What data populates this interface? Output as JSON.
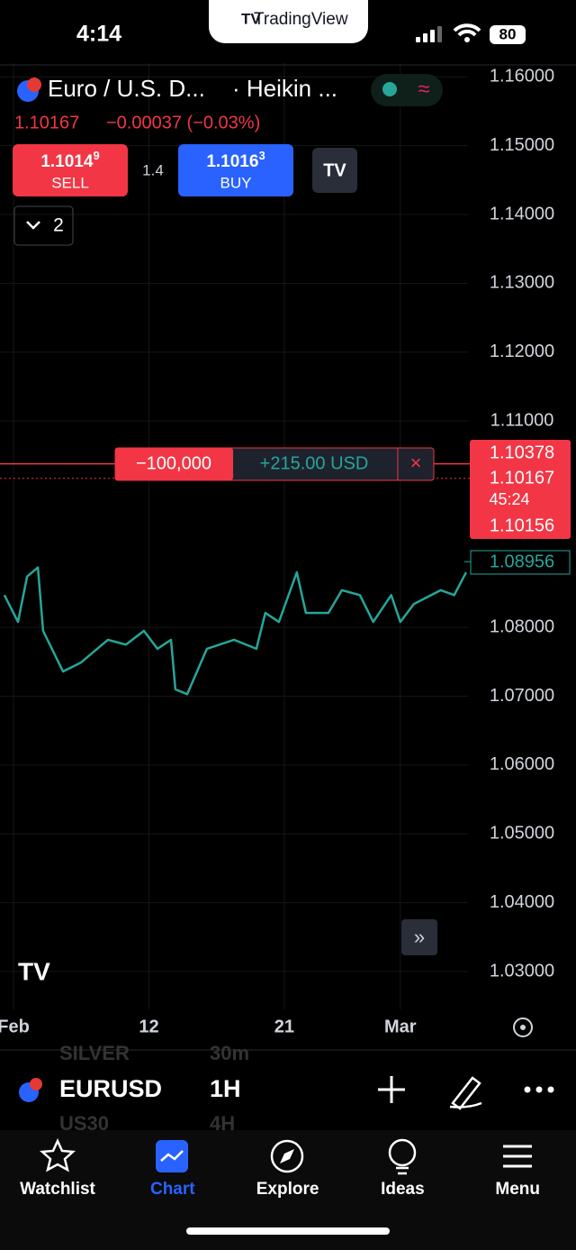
{
  "status_bar": {
    "time": "4:14",
    "app": "TradingView",
    "battery": "80"
  },
  "header": {
    "symbol": "Euro / U.S. D...",
    "chart_style": "· Heikin ...",
    "price": "1.10167",
    "change": "−0.00037 (−0.03%)"
  },
  "trade": {
    "sell_price": "1.1014",
    "sell_pip": "9",
    "sell_label": "SELL",
    "spread": "1.4",
    "buy_price": "1.1016",
    "buy_pip": "3",
    "buy_label": "BUY",
    "collapsed_count": "2"
  },
  "position": {
    "quantity": "−100,000",
    "pnl": "+215.00 USD",
    "close": "×"
  },
  "price_scale": {
    "entry": {
      "value": 1.10378,
      "label": "1.10378"
    },
    "last": {
      "value": 1.10167,
      "label": "1.10167"
    },
    "countdown": "45:24",
    "bid": {
      "value": 1.10156,
      "label": "1.10156"
    },
    "current": {
      "value": 1.08956,
      "label": "1.08956"
    }
  },
  "chart_data": {
    "type": "line",
    "x": [
      -0.47,
      0.23,
      0.7,
      1.26,
      1.53,
      2.56,
      3.49,
      4.88,
      5.81,
      6.74,
      7.44,
      8.14,
      8.37,
      8.98,
      10.0,
      11.4,
      12.56,
      13.02,
      13.72,
      14.65,
      15.12,
      16.28,
      16.98,
      17.91,
      18.6,
      19.53,
      20.0,
      20.7,
      22.09,
      22.79,
      23.4
    ],
    "values": [
      1.0847,
      1.0808,
      1.0874,
      1.0887,
      1.0795,
      1.0736,
      1.0749,
      1.0782,
      1.0775,
      1.0795,
      1.0769,
      1.0782,
      1.071,
      1.0703,
      1.0769,
      1.0782,
      1.0769,
      1.0821,
      1.0808,
      1.088,
      1.0821,
      1.0821,
      1.0854,
      1.0847,
      1.0808,
      1.0847,
      1.0808,
      1.0834,
      1.0854,
      1.0847,
      1.088
    ],
    "color": "#26a69a",
    "xlim": [
      -0.7,
      23.5
    ],
    "xticks": [
      {
        "value": 0,
        "label": "Feb"
      },
      {
        "value": 7,
        "label": "12"
      },
      {
        "value": 14,
        "label": "21"
      },
      {
        "value": 20,
        "label": "Mar"
      }
    ],
    "ylim": [
      1.0245,
      1.162
    ],
    "yticks": [
      {
        "value": 1.16,
        "label": "1.16000"
      },
      {
        "value": 1.15,
        "label": "1.15000"
      },
      {
        "value": 1.14,
        "label": "1.14000"
      },
      {
        "value": 1.13,
        "label": "1.13000"
      },
      {
        "value": 1.12,
        "label": "1.12000"
      },
      {
        "value": 1.11,
        "label": "1.11000"
      },
      {
        "value": 1.08,
        "label": "1.08000"
      },
      {
        "value": 1.07,
        "label": "1.07000"
      },
      {
        "value": 1.06,
        "label": "1.06000"
      },
      {
        "value": 1.05,
        "label": "1.05000"
      },
      {
        "value": 1.04,
        "label": "1.04000"
      },
      {
        "value": 1.03,
        "label": "1.03000"
      }
    ],
    "grid": true
  },
  "bottom_bar": {
    "symbol": "EURUSD",
    "interval": "1H",
    "ghost_symbol_above": "SILVER",
    "ghost_interval_above": "30m",
    "ghost_symbol_below": "US30",
    "ghost_interval_below": "4H"
  },
  "nav": {
    "items": [
      "Watchlist",
      "Chart",
      "Explore",
      "Ideas",
      "Menu"
    ]
  }
}
